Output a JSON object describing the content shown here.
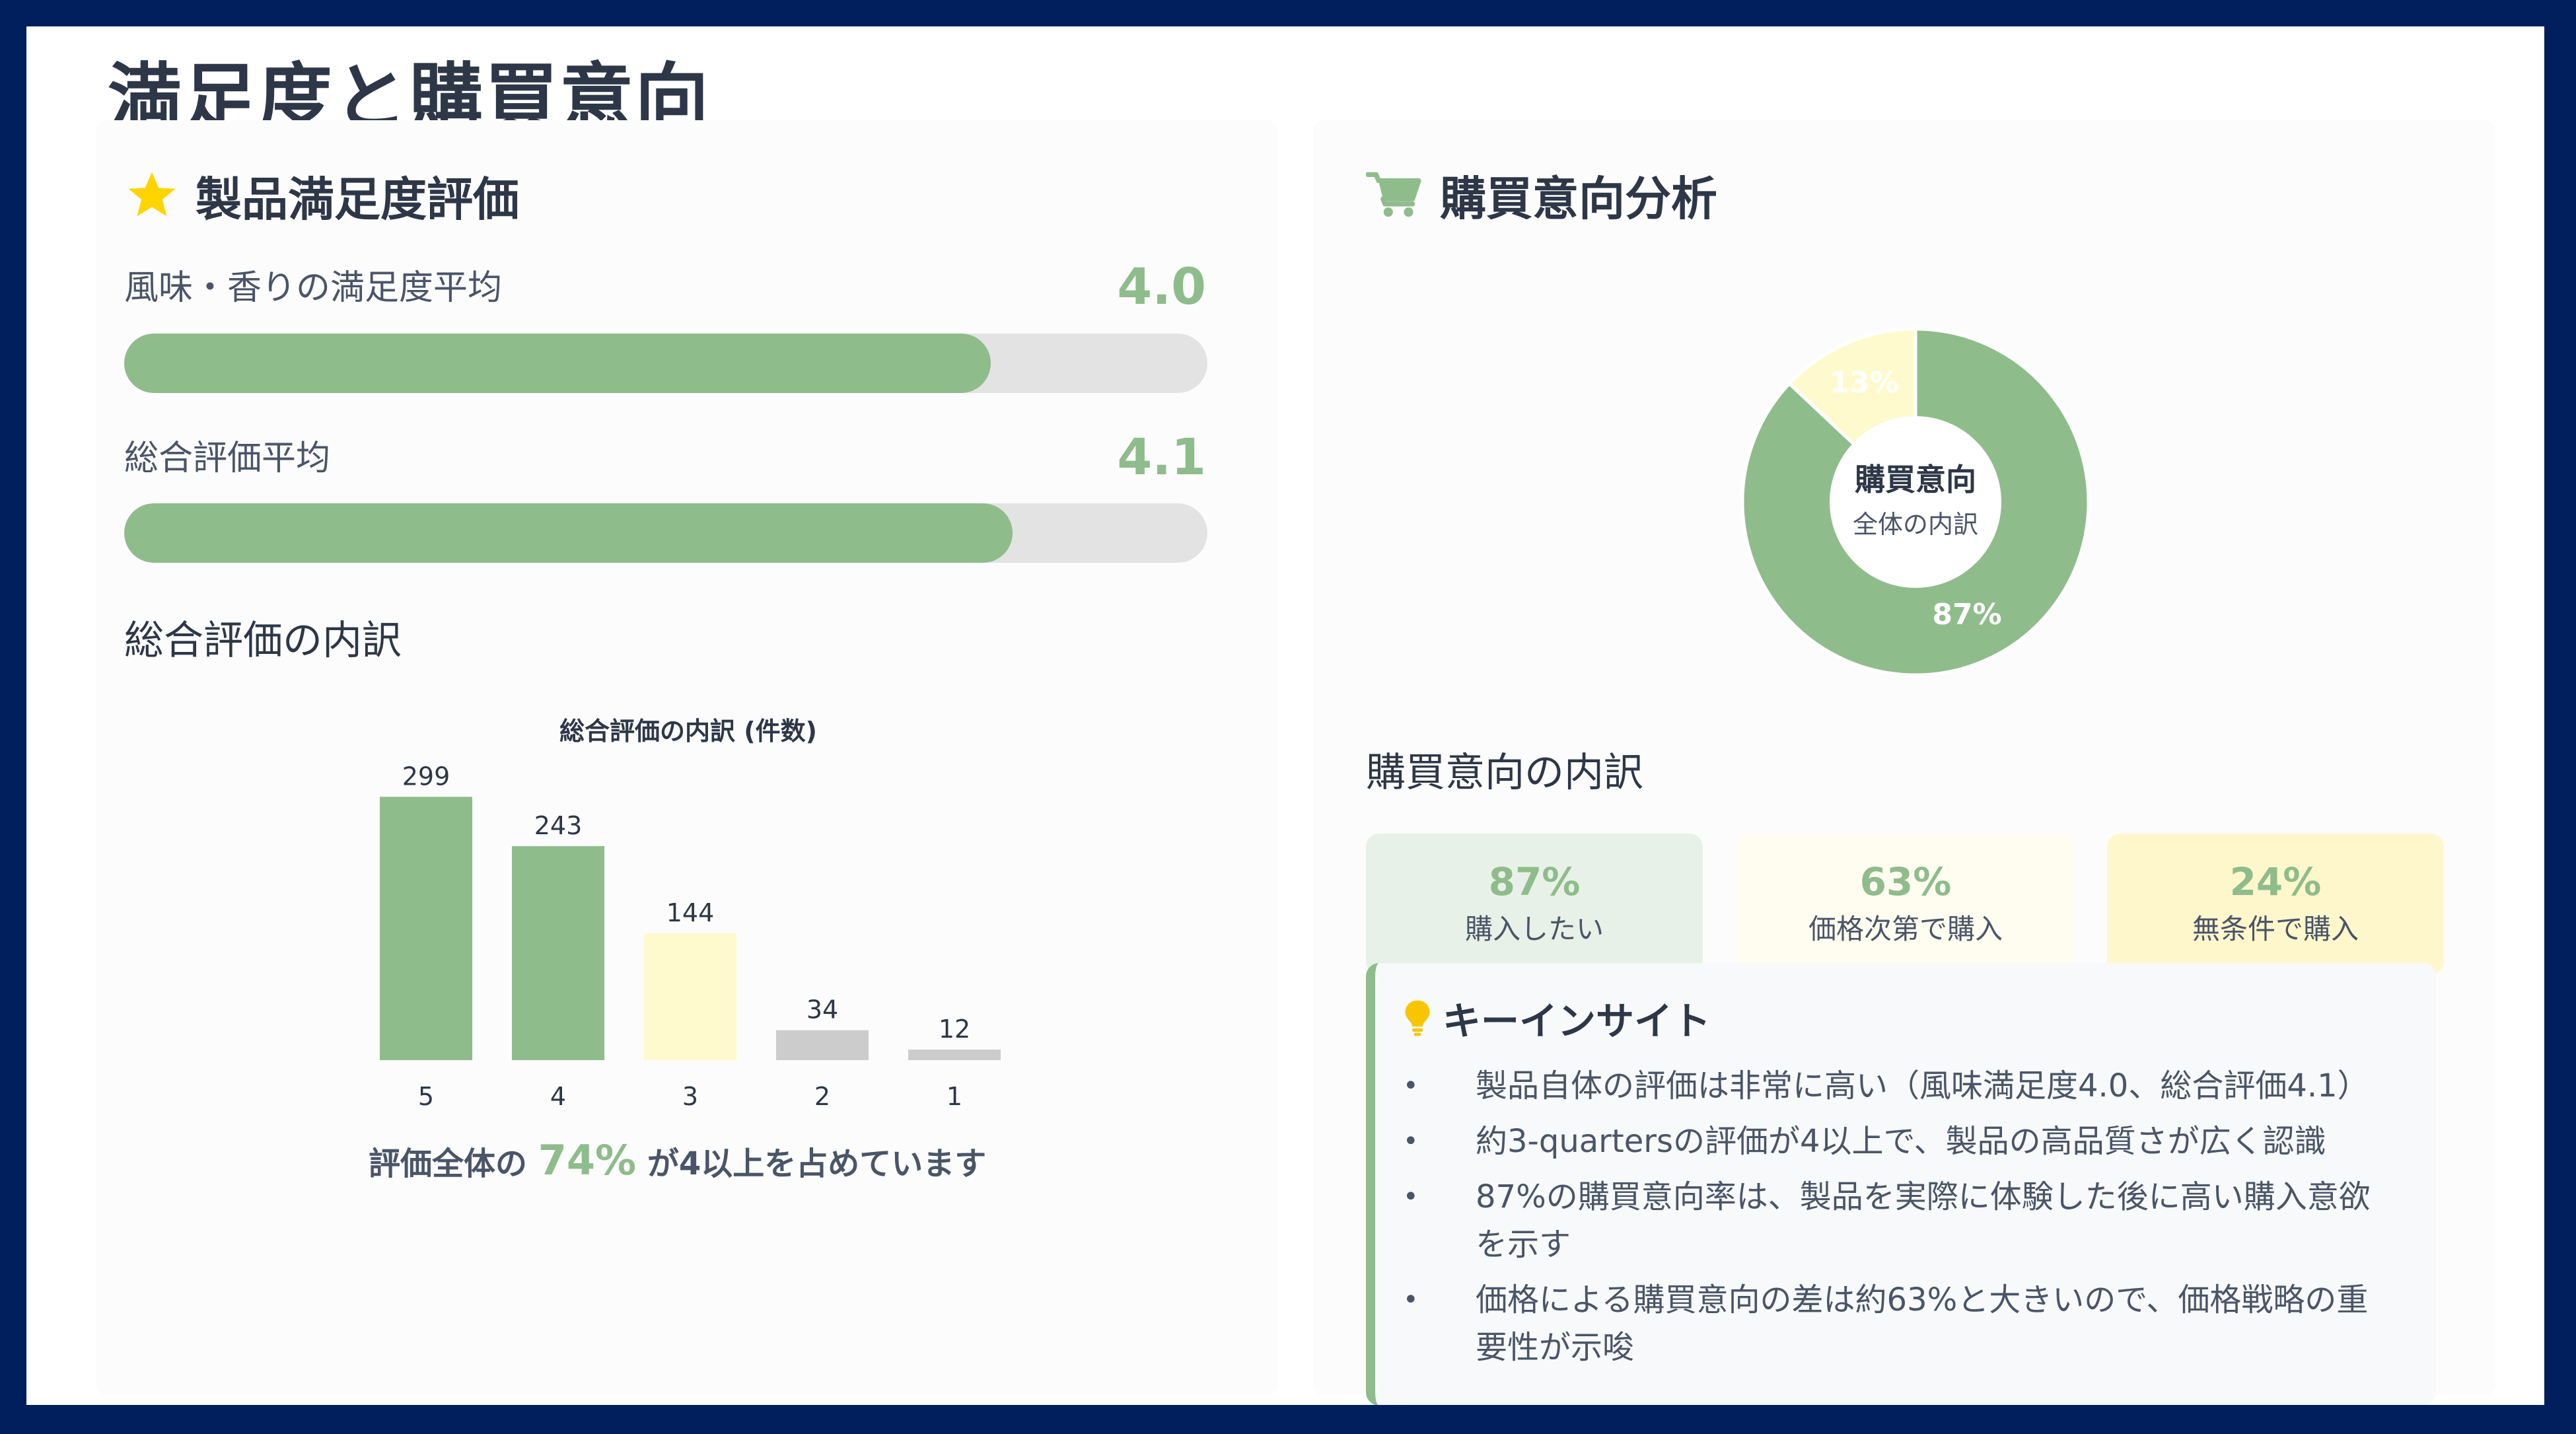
{
  "page": {
    "title": "満足度と購買意向"
  },
  "satisfaction": {
    "title": "製品満足度評価",
    "icon": "star-icon",
    "metrics": [
      {
        "label": "風味・香りの満足度平均",
        "value": "4.0",
        "fraction": 0.8
      },
      {
        "label": "総合評価平均",
        "value": "4.1",
        "fraction": 0.82
      }
    ],
    "breakdown_title": "総合評価の内訳",
    "summary": {
      "prefix": "評価全体の",
      "highlight": "74%",
      "suffix": "が4以上を占めています"
    }
  },
  "purchase": {
    "title": "購買意向分析",
    "icon": "cart-icon",
    "donut": {
      "center_title": "購買意向",
      "center_sub": "全体の内訳"
    },
    "breakdown_title": "購買意向の内訳",
    "cards": [
      {
        "pct": "87%",
        "label": "購入したい",
        "bg": "#e8f1e7"
      },
      {
        "pct": "63%",
        "label": "価格次第で購入",
        "bg": "#fffdf0"
      },
      {
        "pct": "24%",
        "label": "無条件で購入",
        "bg": "#fff7cc"
      }
    ],
    "insight": {
      "title": "キーインサイト",
      "icon": "lightbulb-icon",
      "items": [
        "製品自体の評価は非常に高い（風味満足度4.0、総合評価4.1）",
        "約3-quartersの評価が4以上で、製品の高品質さが広く認識",
        "87%の購買意向率は、製品を実際に体験した後に高い購入意欲を示す",
        "価格による購買意向の差は約63%と大きいので、価格戦略の重要性が示唆"
      ]
    }
  },
  "colors": {
    "accent": "#8fbc8b",
    "yellow": "#fffacd",
    "gray": "#cccccc",
    "navy": "#001f5c"
  },
  "chart_data": [
    {
      "type": "bar",
      "title": "総合評価の内訳 (件数)",
      "categories": [
        "5",
        "4",
        "3",
        "2",
        "1"
      ],
      "values": [
        299,
        243,
        144,
        34,
        12
      ],
      "colors": [
        "#8fbc8b",
        "#8fbc8b",
        "#fffacd",
        "#cccccc",
        "#cccccc"
      ],
      "xlabel": "",
      "ylabel": "",
      "ylim": [
        0,
        300
      ],
      "grid": false
    },
    {
      "type": "pie",
      "variant": "donut",
      "labels": [
        "87%",
        "13%"
      ],
      "values": [
        87,
        13
      ],
      "colors": [
        "#8fbc8b",
        "#fffacd"
      ]
    }
  ]
}
